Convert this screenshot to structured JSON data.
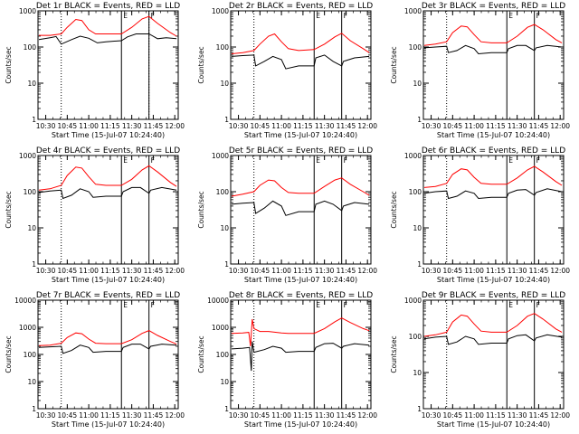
{
  "figure": {
    "xlabel": "Start Time (15-Jul-07 10:24:40)",
    "ylabel": "Counts/sec",
    "x_ticks": [
      "10:30",
      "10:45",
      "11:00",
      "11:15",
      "11:30",
      "11:45",
      "12:00"
    ],
    "y_ticks": [
      "1",
      "10",
      "100",
      "1000"
    ],
    "vline_labels": [
      "E",
      "F"
    ],
    "colors": {
      "events": "#000000",
      "lld": "#ff0000"
    }
  },
  "chart_data": [
    {
      "type": "line",
      "title": "Det 1r BLACK = Events, RED = LLD",
      "x_range": [
        10.41,
        12.04
      ],
      "ylim": [
        1,
        1000
      ],
      "log_y": true,
      "x_ticks": [
        10.5,
        10.75,
        11.0,
        11.25,
        11.5,
        11.75,
        12.0
      ],
      "dotted_vlines": [
        10.68,
        11.7
      ],
      "solid_vlines": [
        11.38,
        11.7
      ],
      "series": [
        {
          "x": [
            10.42,
            10.55,
            10.62,
            10.68,
            10.8,
            10.9,
            11.0,
            11.1,
            11.2,
            11.38,
            11.45,
            11.55,
            11.7,
            11.8,
            11.9,
            12.02
          ],
          "values": [
            160,
            180,
            195,
            120,
            160,
            200,
            175,
            130,
            140,
            150,
            190,
            230,
            230,
            170,
            180,
            170
          ]
        },
        {
          "x": [
            10.42,
            10.55,
            10.68,
            10.75,
            10.85,
            10.92,
            11.0,
            11.08,
            11.2,
            11.38,
            11.5,
            11.62,
            11.7,
            11.8,
            11.95,
            12.02
          ],
          "values": [
            210,
            210,
            230,
            350,
            580,
            540,
            300,
            230,
            230,
            230,
            350,
            600,
            700,
            450,
            250,
            200
          ]
        }
      ]
    },
    {
      "type": "line",
      "title": "Det 2r BLACK = Events, RED = LLD",
      "x_range": [
        10.41,
        12.04
      ],
      "ylim": [
        1,
        1000
      ],
      "log_y": true,
      "x_ticks": [
        10.5,
        10.75,
        11.0,
        11.25,
        11.5,
        11.75,
        12.0
      ],
      "dotted_vlines": [
        10.68
      ],
      "solid_vlines": [
        11.38,
        11.7
      ],
      "series": [
        {
          "x": [
            10.42,
            10.55,
            10.68,
            10.7,
            10.8,
            10.9,
            11.0,
            11.05,
            11.2,
            11.38,
            11.4,
            11.5,
            11.6,
            11.7,
            11.72,
            11.85,
            12.02
          ],
          "values": [
            55,
            58,
            60,
            30,
            40,
            55,
            45,
            25,
            30,
            30,
            50,
            60,
            40,
            30,
            40,
            50,
            55
          ]
        },
        {
          "x": [
            10.42,
            10.55,
            10.68,
            10.75,
            10.85,
            10.92,
            11.0,
            11.08,
            11.2,
            11.38,
            11.5,
            11.62,
            11.7,
            11.8,
            11.95,
            12.02
          ],
          "values": [
            65,
            70,
            80,
            120,
            200,
            230,
            140,
            90,
            80,
            85,
            120,
            190,
            240,
            150,
            90,
            70
          ]
        }
      ]
    },
    {
      "type": "line",
      "title": "Det 3r BLACK = Events, RED = LLD",
      "x_range": [
        10.41,
        12.04
      ],
      "ylim": [
        1,
        1000
      ],
      "log_y": true,
      "x_ticks": [
        10.5,
        10.75,
        11.0,
        11.25,
        11.5,
        11.75,
        12.0
      ],
      "dotted_vlines": [
        10.68
      ],
      "solid_vlines": [
        11.38,
        11.7
      ],
      "series": [
        {
          "x": [
            10.42,
            10.55,
            10.68,
            10.7,
            10.8,
            10.9,
            11.0,
            11.05,
            11.2,
            11.38,
            11.4,
            11.5,
            11.6,
            11.7,
            11.72,
            11.85,
            12.02
          ],
          "values": [
            95,
            100,
            105,
            70,
            80,
            110,
            90,
            65,
            70,
            70,
            90,
            110,
            110,
            80,
            95,
            110,
            100
          ]
        },
        {
          "x": [
            10.42,
            10.55,
            10.68,
            10.75,
            10.85,
            10.92,
            11.0,
            11.08,
            11.2,
            11.38,
            11.5,
            11.62,
            11.7,
            11.8,
            11.95,
            12.02
          ],
          "values": [
            110,
            120,
            140,
            250,
            380,
            360,
            220,
            140,
            130,
            130,
            200,
            350,
            420,
            300,
            160,
            130
          ]
        }
      ]
    },
    {
      "type": "line",
      "title": "Det 4r BLACK = Events, RED = LLD",
      "x_range": [
        10.41,
        12.04
      ],
      "ylim": [
        1,
        1000
      ],
      "log_y": true,
      "x_ticks": [
        10.5,
        10.75,
        11.0,
        11.25,
        11.5,
        11.75,
        12.0
      ],
      "dotted_vlines": [
        10.68
      ],
      "solid_vlines": [
        11.38,
        11.7
      ],
      "series": [
        {
          "x": [
            10.42,
            10.55,
            10.68,
            10.7,
            10.8,
            10.9,
            11.0,
            11.05,
            11.2,
            11.38,
            11.4,
            11.5,
            11.6,
            11.7,
            11.72,
            11.85,
            12.02
          ],
          "values": [
            95,
            105,
            110,
            65,
            80,
            120,
            100,
            70,
            75,
            75,
            100,
            130,
            130,
            90,
            110,
            130,
            110
          ]
        },
        {
          "x": [
            10.42,
            10.55,
            10.68,
            10.75,
            10.85,
            10.92,
            11.0,
            11.08,
            11.2,
            11.38,
            11.5,
            11.62,
            11.7,
            11.8,
            11.95,
            12.02
          ],
          "values": [
            110,
            120,
            150,
            280,
            480,
            450,
            260,
            160,
            150,
            150,
            220,
            400,
            520,
            350,
            180,
            140
          ]
        }
      ]
    },
    {
      "type": "line",
      "title": "Det 5r BLACK = Events, RED = LLD",
      "x_range": [
        10.41,
        12.04
      ],
      "ylim": [
        1,
        1000
      ],
      "log_y": true,
      "x_ticks": [
        10.5,
        10.75,
        11.0,
        11.25,
        11.5,
        11.75,
        12.0
      ],
      "dotted_vlines": [
        10.68
      ],
      "solid_vlines": [
        11.38,
        11.7
      ],
      "series": [
        {
          "x": [
            10.42,
            10.55,
            10.68,
            10.7,
            10.8,
            10.9,
            11.0,
            11.05,
            11.2,
            11.38,
            11.4,
            11.5,
            11.6,
            11.7,
            11.72,
            11.85,
            12.02
          ],
          "values": [
            45,
            48,
            50,
            25,
            35,
            55,
            40,
            22,
            28,
            28,
            45,
            55,
            45,
            30,
            40,
            50,
            45
          ]
        },
        {
          "x": [
            10.42,
            10.55,
            10.68,
            10.75,
            10.85,
            10.92,
            11.0,
            11.08,
            11.2,
            11.38,
            11.5,
            11.62,
            11.7,
            11.8,
            11.95,
            12.02
          ],
          "values": [
            75,
            85,
            100,
            150,
            210,
            200,
            130,
            95,
            90,
            90,
            140,
            210,
            240,
            160,
            100,
            80
          ]
        }
      ]
    },
    {
      "type": "line",
      "title": "Det 6r BLACK = Events, RED = LLD",
      "x_range": [
        10.41,
        12.04
      ],
      "ylim": [
        1,
        1000
      ],
      "log_y": true,
      "x_ticks": [
        10.5,
        10.75,
        11.0,
        11.25,
        11.5,
        11.75,
        12.0
      ],
      "dotted_vlines": [
        10.68
      ],
      "solid_vlines": [
        11.38,
        11.7
      ],
      "series": [
        {
          "x": [
            10.42,
            10.55,
            10.68,
            10.7,
            10.8,
            10.9,
            11.0,
            11.05,
            11.2,
            11.38,
            11.4,
            11.5,
            11.6,
            11.7,
            11.72,
            11.85,
            12.02
          ],
          "values": [
            90,
            100,
            105,
            65,
            75,
            105,
            90,
            65,
            70,
            70,
            90,
            110,
            115,
            80,
            95,
            120,
            100
          ]
        },
        {
          "x": [
            10.42,
            10.55,
            10.68,
            10.75,
            10.85,
            10.92,
            11.0,
            11.08,
            11.2,
            11.38,
            11.5,
            11.62,
            11.7,
            11.8,
            11.95,
            12.02
          ],
          "values": [
            130,
            140,
            170,
            300,
            430,
            400,
            250,
            170,
            160,
            160,
            240,
            400,
            500,
            350,
            190,
            150
          ]
        }
      ]
    },
    {
      "type": "line",
      "title": "Det 7r BLACK = Events, RED = LLD",
      "x_range": [
        10.41,
        12.04
      ],
      "ylim": [
        1,
        10000
      ],
      "log_y": true,
      "x_ticks": [
        10.5,
        10.75,
        11.0,
        11.25,
        11.5,
        11.75,
        12.0
      ],
      "dotted_vlines": [
        10.68
      ],
      "solid_vlines": [
        11.38,
        11.7
      ],
      "series": [
        {
          "x": [
            10.42,
            10.55,
            10.68,
            10.7,
            10.8,
            10.9,
            11.0,
            11.05,
            11.2,
            11.38,
            11.4,
            11.5,
            11.6,
            11.7,
            11.72,
            11.85,
            12.02
          ],
          "values": [
            180,
            190,
            200,
            110,
            140,
            220,
            180,
            120,
            130,
            130,
            180,
            240,
            240,
            160,
            200,
            240,
            220
          ]
        },
        {
          "x": [
            10.42,
            10.55,
            10.68,
            10.75,
            10.85,
            10.92,
            11.0,
            11.08,
            11.2,
            11.38,
            11.5,
            11.62,
            11.7,
            11.8,
            11.95,
            12.02
          ],
          "values": [
            210,
            220,
            260,
            420,
            620,
            580,
            370,
            260,
            250,
            250,
            350,
            600,
            760,
            500,
            300,
            240
          ]
        }
      ]
    },
    {
      "type": "line",
      "title": "Det 8r BLACK = Events, RED = LLD",
      "x_range": [
        10.41,
        12.04
      ],
      "ylim": [
        1,
        10000
      ],
      "log_y": true,
      "x_ticks": [
        10.5,
        10.75,
        11.0,
        11.25,
        11.5,
        11.75,
        12.0
      ],
      "dotted_vlines": [
        10.68
      ],
      "solid_vlines": [
        11.38,
        11.7
      ],
      "series": [
        {
          "x": [
            10.42,
            10.55,
            10.63,
            10.65,
            10.66,
            10.68,
            10.8,
            10.9,
            11.0,
            11.05,
            11.2,
            11.38,
            11.4,
            11.5,
            11.6,
            11.7,
            11.72,
            11.85,
            12.02
          ],
          "values": [
            160,
            170,
            180,
            25,
            300,
            120,
            150,
            200,
            170,
            120,
            130,
            130,
            180,
            250,
            260,
            170,
            200,
            250,
            220
          ]
        },
        {
          "x": [
            10.42,
            10.55,
            10.62,
            10.64,
            10.66,
            10.68,
            10.75,
            10.85,
            10.92,
            11.0,
            11.08,
            11.2,
            11.38,
            11.5,
            11.62,
            11.7,
            11.8,
            11.95,
            12.02
          ],
          "values": [
            600,
            620,
            650,
            200,
            2000,
            900,
            700,
            700,
            660,
            620,
            600,
            600,
            600,
            900,
            1600,
            2200,
            1500,
            900,
            750
          ]
        }
      ]
    },
    {
      "type": "line",
      "title": "Det 9r BLACK = Events, RED = LLD",
      "x_range": [
        10.41,
        12.04
      ],
      "ylim": [
        1,
        1000
      ],
      "log_y": true,
      "x_ticks": [
        10.5,
        10.75,
        11.0,
        11.25,
        11.5,
        11.75,
        12.0
      ],
      "dotted_vlines": [
        10.68
      ],
      "solid_vlines": [
        11.38,
        11.7
      ],
      "series": [
        {
          "x": [
            10.42,
            10.55,
            10.68,
            10.7,
            10.8,
            10.9,
            11.0,
            11.05,
            11.2,
            11.38,
            11.4,
            11.5,
            11.6,
            11.7,
            11.72,
            11.85,
            12.02
          ],
          "values": [
            85,
            95,
            100,
            60,
            70,
            100,
            85,
            60,
            65,
            65,
            85,
            105,
            110,
            75,
            90,
            110,
            95
          ]
        },
        {
          "x": [
            10.42,
            10.55,
            10.68,
            10.75,
            10.85,
            10.92,
            11.0,
            11.08,
            11.2,
            11.38,
            11.5,
            11.62,
            11.7,
            11.8,
            11.95,
            12.02
          ],
          "values": [
            100,
            110,
            130,
            250,
            390,
            360,
            220,
            140,
            130,
            130,
            200,
            360,
            430,
            300,
            160,
            130
          ]
        }
      ]
    }
  ]
}
